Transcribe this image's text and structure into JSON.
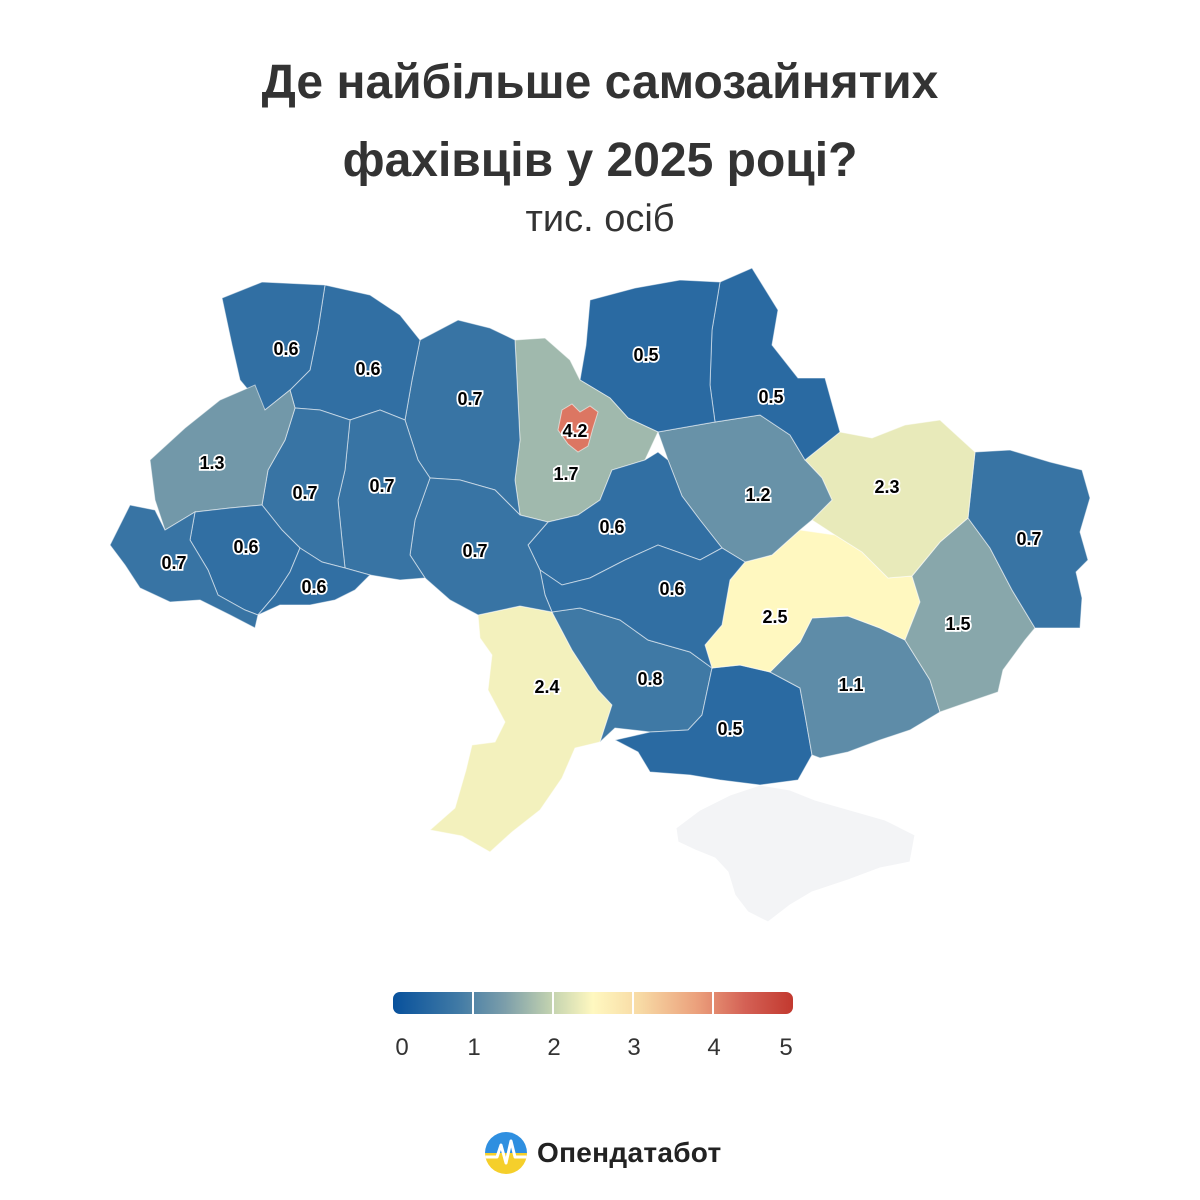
{
  "title": {
    "line1": "Де найбільше самозайнятих",
    "line2": "фахівців у 2025 році?"
  },
  "subtitle": "тис. осіб",
  "colors": {
    "low": "#08519c",
    "mid": "#fff8c0",
    "high": "#c2392f",
    "no_data": "#f3f4f6"
  },
  "chart_data": {
    "type": "choropleth",
    "unit": "тис. осіб",
    "scale": {
      "min": 0,
      "max": 5
    },
    "regions": [
      {
        "id": "volyn",
        "value": 0.6,
        "label": "0.6"
      },
      {
        "id": "rivne",
        "value": 0.6,
        "label": "0.6"
      },
      {
        "id": "zhytomyr",
        "value": 0.7,
        "label": "0.7"
      },
      {
        "id": "kyiv-oblast",
        "value": 1.7,
        "label": "1.7"
      },
      {
        "id": "kyiv-city",
        "value": 4.2,
        "label": "4.2"
      },
      {
        "id": "chernihiv",
        "value": 0.5,
        "label": "0.5"
      },
      {
        "id": "sumy",
        "value": 0.5,
        "label": "0.5"
      },
      {
        "id": "lviv",
        "value": 1.3,
        "label": "1.3"
      },
      {
        "id": "ternopil",
        "value": 0.7,
        "label": "0.7"
      },
      {
        "id": "khmelnytskyi",
        "value": 0.7,
        "label": "0.7"
      },
      {
        "id": "vinnytsia",
        "value": 0.7,
        "label": "0.7"
      },
      {
        "id": "cherkasy",
        "value": 0.6,
        "label": "0.6"
      },
      {
        "id": "poltava",
        "value": 1.2,
        "label": "1.2"
      },
      {
        "id": "kharkiv",
        "value": 2.3,
        "label": "2.3"
      },
      {
        "id": "luhansk",
        "value": 0.7,
        "label": "0.7"
      },
      {
        "id": "zakarpattia",
        "value": 0.7,
        "label": "0.7"
      },
      {
        "id": "ivano-frankivsk",
        "value": 0.6,
        "label": "0.6"
      },
      {
        "id": "chernivtsi",
        "value": 0.6,
        "label": "0.6"
      },
      {
        "id": "kirovohrad",
        "value": 0.6,
        "label": "0.6"
      },
      {
        "id": "dnipropetrovsk",
        "value": 2.5,
        "label": "2.5"
      },
      {
        "id": "donetsk",
        "value": 1.5,
        "label": "1.5"
      },
      {
        "id": "odesa",
        "value": 2.4,
        "label": "2.4"
      },
      {
        "id": "mykolaiv",
        "value": 0.8,
        "label": "0.8"
      },
      {
        "id": "kherson",
        "value": 0.5,
        "label": "0.5"
      },
      {
        "id": "zaporizhzhia",
        "value": 1.1,
        "label": "1.1"
      },
      {
        "id": "crimea",
        "value": null,
        "label": ""
      }
    ],
    "legend": {
      "position": "bottom",
      "ticks": [
        "0",
        "1",
        "2",
        "3",
        "4",
        "5"
      ]
    }
  },
  "logo": {
    "text": "Опендатабот",
    "icon": "opendatabot-logo-icon"
  }
}
